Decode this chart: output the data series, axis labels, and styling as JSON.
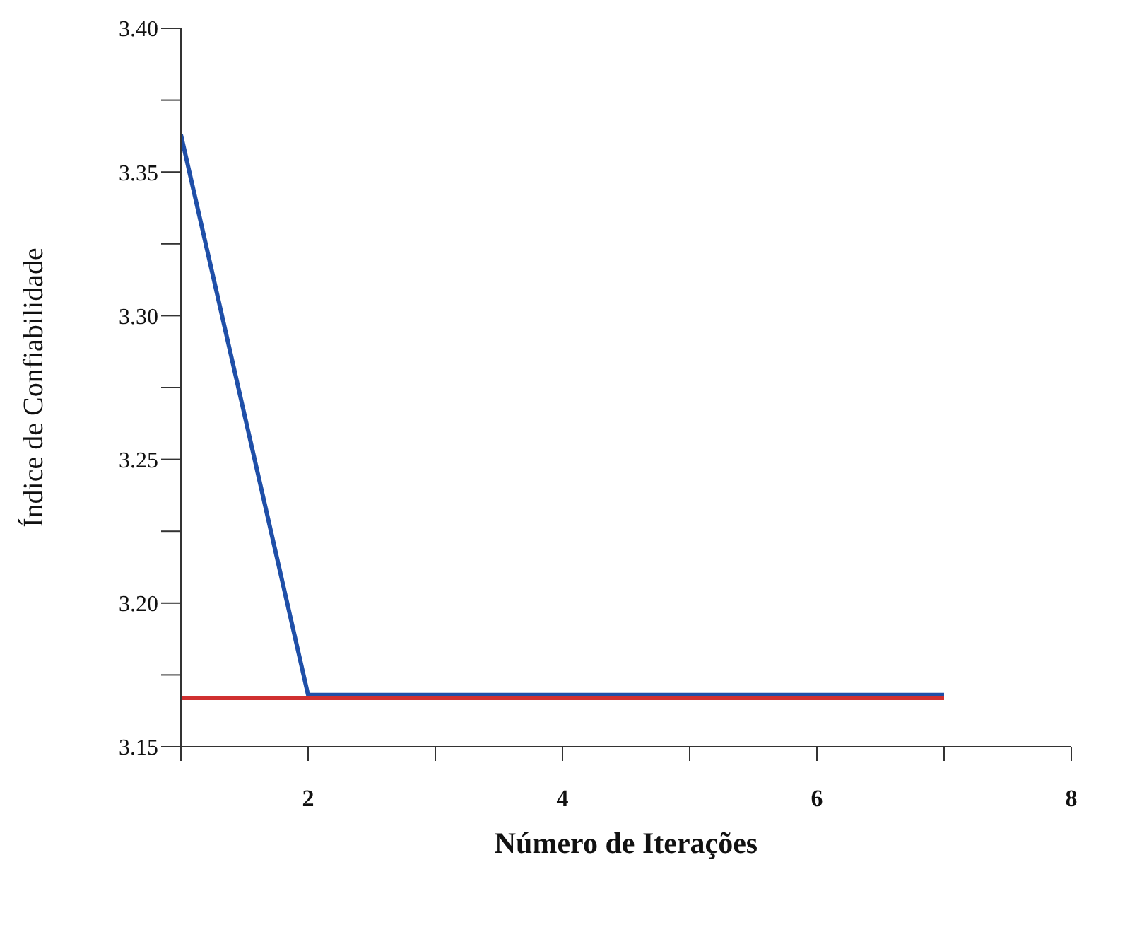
{
  "chart_data": {
    "type": "line",
    "xlabel": "Número de Iterações",
    "ylabel": "Índice de Confiabilidade",
    "x": [
      1,
      2,
      3,
      4,
      5,
      6,
      7
    ],
    "series": [
      {
        "color": "#1f4fa8",
        "values": [
          3.363,
          3.168,
          3.168,
          3.168,
          3.168,
          3.168,
          3.168
        ]
      },
      {
        "color": "#d03030",
        "values": [
          3.167,
          3.167,
          3.167,
          3.167,
          3.167,
          3.167,
          3.167
        ]
      }
    ],
    "xlim": [
      1,
      8
    ],
    "xticks": [
      {
        "value": 1,
        "label": null
      },
      2,
      {
        "value": 3,
        "label": null
      },
      4,
      {
        "value": 5,
        "label": null
      },
      6,
      {
        "value": 7,
        "label": null
      },
      8
    ],
    "ylim": [
      3.15,
      3.4
    ],
    "yticks": [
      3.15,
      {
        "value": 3.175,
        "label": null
      },
      {
        "value": 3.2,
        "label": "3.20"
      },
      {
        "value": 3.225,
        "label": null
      },
      3.25,
      {
        "value": 3.275,
        "label": null
      },
      {
        "value": 3.3,
        "label": "3.30"
      },
      {
        "value": 3.325,
        "label": null
      },
      3.35,
      {
        "value": 3.375,
        "label": null
      },
      {
        "value": 3.4,
        "label": "3.40"
      }
    ],
    "grid": false,
    "legend": false,
    "marker": "none",
    "line_style": "solid"
  }
}
